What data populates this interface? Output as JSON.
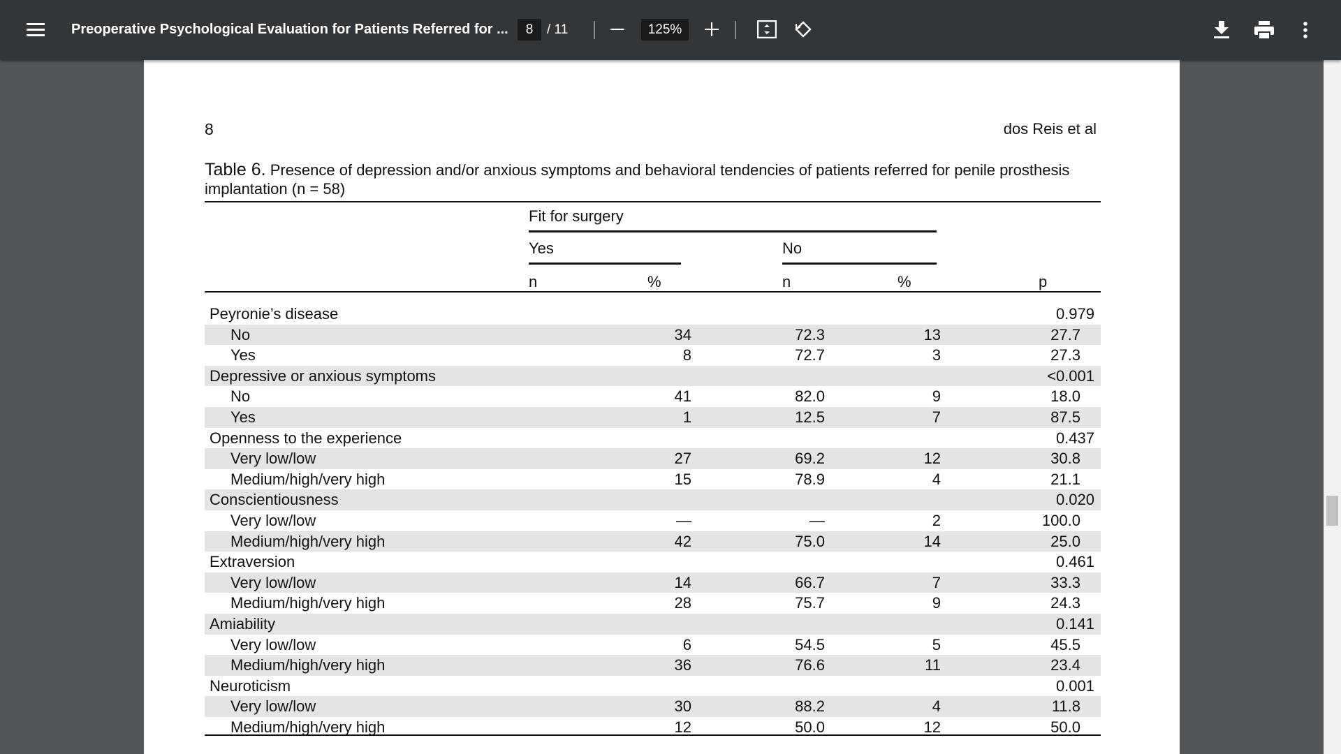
{
  "toolbar": {
    "title": "Preoperative Psychological Evaluation for Patients Referred for ...",
    "page": "8",
    "page_total": "/ 11",
    "zoom": "125%"
  },
  "page": {
    "number": "8",
    "running_head": "dos Reis et al"
  },
  "table": {
    "caption_label": "Table 6.",
    "caption": "Presence of depression and/or anxious symptoms and behavioral tendencies of patients referred for penile prosthesis implantation (n = 58)",
    "header": {
      "fit": "Fit for surgery",
      "yes": "Yes",
      "no": "No",
      "n1": "n",
      "pct1": "%",
      "n2": "n",
      "pct2": "%",
      "p": "p"
    },
    "rows": [
      {
        "label": "Peyronie’s disease",
        "p": "0.979"
      },
      {
        "label": "No",
        "cells": [
          "34",
          "72.3",
          "13",
          "27.7"
        ]
      },
      {
        "label": "Yes",
        "cells": [
          "8",
          "72.7",
          "3",
          "27.3"
        ]
      },
      {
        "label": "Depressive or anxious symptoms",
        "p": "<0.001"
      },
      {
        "label": "No",
        "cells": [
          "41",
          "82.0",
          "9",
          "18.0"
        ]
      },
      {
        "label": "Yes",
        "cells": [
          "1",
          "12.5",
          "7",
          "87.5"
        ]
      },
      {
        "label": "Openness to the experience",
        "p": "0.437"
      },
      {
        "label": "Very low/low",
        "cells": [
          "27",
          "69.2",
          "12",
          "30.8"
        ]
      },
      {
        "label": "Medium/high/very high",
        "cells": [
          "15",
          "78.9",
          "4",
          "21.1"
        ]
      },
      {
        "label": "Conscientiousness",
        "p": "0.020"
      },
      {
        "label": "Very low/low",
        "cells": [
          "—",
          "—",
          "2",
          "100.0"
        ]
      },
      {
        "label": "Medium/high/very high",
        "cells": [
          "42",
          "75.0",
          "14",
          "25.0"
        ]
      },
      {
        "label": "Extraversion",
        "p": "0.461"
      },
      {
        "label": "Very low/low",
        "cells": [
          "14",
          "66.7",
          "7",
          "33.3"
        ]
      },
      {
        "label": "Medium/high/very high",
        "cells": [
          "28",
          "75.7",
          "9",
          "24.3"
        ]
      },
      {
        "label": "Amiability",
        "p": "0.141"
      },
      {
        "label": "Very low/low",
        "cells": [
          "6",
          "54.5",
          "5",
          "45.5"
        ]
      },
      {
        "label": "Medium/high/very high",
        "cells": [
          "36",
          "76.6",
          "11",
          "23.4"
        ]
      },
      {
        "label": "Neuroticism",
        "p": "0.001"
      },
      {
        "label": "Very low/low",
        "cells": [
          "30",
          "88.2",
          "4",
          "11.8"
        ]
      },
      {
        "label": "Medium/high/very high",
        "cells": [
          "12",
          "50.0",
          "12",
          "50.0"
        ]
      }
    ]
  }
}
